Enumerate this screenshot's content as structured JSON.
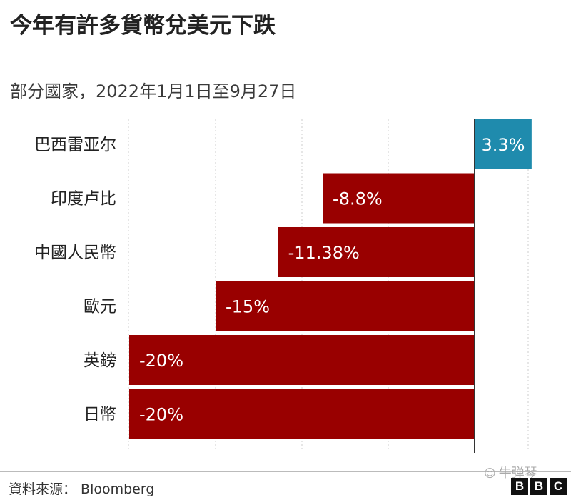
{
  "header": {
    "title": "今年有許多貨幣兌美元下跌",
    "subtitle": "部分國家，2022年1月1日至9月27日"
  },
  "chart_data": {
    "type": "bar",
    "orientation": "horizontal",
    "categories": [
      "巴西雷亚尔",
      "印度卢比",
      "中國人民幣",
      "歐元",
      "英鎊",
      "日幣"
    ],
    "values": [
      3.3,
      -8.8,
      -11.38,
      -15,
      -20,
      -20
    ],
    "data_labels": [
      "3.3%",
      "-8.8%",
      "-11.38%",
      "-15%",
      "-20%",
      "-20%"
    ],
    "title": "今年有許多貨幣兌美元下跌",
    "subtitle": "部分國家，2022年1月1日至9月27日",
    "xlabel": "",
    "ylabel": "",
    "grid": true,
    "legend": "none",
    "colors": {
      "positive": "#1f8bad",
      "negative": "#990000"
    }
  },
  "footer": {
    "source": "資料來源： Bloomberg",
    "watermark": "牛弹琴",
    "watermark_icon": "wechat-icon",
    "logo_letters": [
      "B",
      "B",
      "C"
    ]
  }
}
